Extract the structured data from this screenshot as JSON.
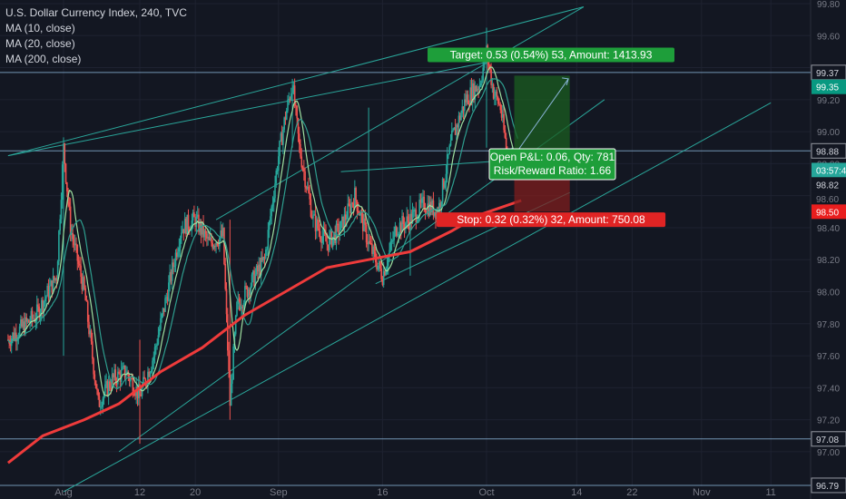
{
  "legend": {
    "title": "U.S. Dollar Currency Index, 240, TVC",
    "ma1": "MA (10, close)",
    "ma2": "MA (20, close)",
    "ma3": "MA (200, close)"
  },
  "chart_data": {
    "type": "candlestick",
    "ylim": [
      96.75,
      99.8
    ],
    "y_ticks": [
      "99.80",
      "99.60",
      "99.40",
      "99.20",
      "99.00",
      "98.80",
      "98.60",
      "98.40",
      "98.20",
      "98.00",
      "97.80",
      "97.60",
      "97.40",
      "97.20",
      "97.00"
    ],
    "x_ticks": [
      {
        "label": "Aug",
        "day": 0
      },
      {
        "label": "12",
        "day": 11
      },
      {
        "label": "20",
        "day": 19
      },
      {
        "label": "Sep",
        "day": 31
      },
      {
        "label": "16",
        "day": 46
      },
      {
        "label": "Oct",
        "day": 61
      },
      {
        "label": "14",
        "day": 74
      },
      {
        "label": "22",
        "day": 82
      },
      {
        "label": "Nov",
        "day": 92
      },
      {
        "label": "11",
        "day": 102
      }
    ],
    "x_range_days": [
      -8,
      108
    ],
    "price_tags": [
      {
        "label": "99.37",
        "value": 99.37,
        "color": "#131722",
        "text": "#d1d4dc",
        "border": "#9598a1"
      },
      {
        "label": "99.35",
        "value": 99.28,
        "color": "#089981",
        "text": "#ffffff"
      },
      {
        "label": "98.88",
        "value": 98.88,
        "color": "#131722",
        "text": "#d1d4dc",
        "border": "#9598a1"
      },
      {
        "label": "03:57:41",
        "value": 98.76,
        "color": "#26a69a",
        "text": "#ffffff"
      },
      {
        "label": "98.82",
        "value": 98.67,
        "color": "#131722",
        "text": "#d1d4dc"
      },
      {
        "label": "98.60",
        "value": 98.58,
        "color": "#131722",
        "text": "#787b86"
      },
      {
        "label": "98.50",
        "value": 98.5,
        "color": "#e91e1e",
        "text": "#ffffff"
      },
      {
        "label": "97.08",
        "value": 97.08,
        "color": "#131722",
        "text": "#d1d4dc",
        "border": "#9598a1"
      },
      {
        "label": "96.79",
        "value": 96.79,
        "color": "#131722",
        "text": "#d1d4dc",
        "border": "#9598a1"
      }
    ],
    "horizontal_lines": [
      99.37,
      98.88,
      97.08,
      96.79
    ],
    "ohlc_key_points": [
      {
        "day": -8,
        "close": 97.7
      },
      {
        "day": -4,
        "close": 97.85
      },
      {
        "day": -1,
        "close": 98.1
      },
      {
        "day": 0,
        "close": 98.9
      },
      {
        "day": 1,
        "close": 98.4
      },
      {
        "day": 3,
        "close": 98.0
      },
      {
        "day": 5,
        "close": 97.3
      },
      {
        "day": 7,
        "close": 97.45
      },
      {
        "day": 9,
        "close": 97.5
      },
      {
        "day": 11,
        "close": 97.35
      },
      {
        "day": 13,
        "close": 97.6
      },
      {
        "day": 15,
        "close": 98.0
      },
      {
        "day": 17,
        "close": 98.4
      },
      {
        "day": 19,
        "close": 98.45
      },
      {
        "day": 21,
        "close": 98.3
      },
      {
        "day": 23,
        "close": 98.35
      },
      {
        "day": 24,
        "close": 97.3
      },
      {
        "day": 25,
        "close": 97.9
      },
      {
        "day": 27,
        "close": 98.05
      },
      {
        "day": 29,
        "close": 98.2
      },
      {
        "day": 31,
        "close": 98.85
      },
      {
        "day": 32,
        "close": 99.1
      },
      {
        "day": 33,
        "close": 99.3
      },
      {
        "day": 34,
        "close": 98.9
      },
      {
        "day": 36,
        "close": 98.45
      },
      {
        "day": 38,
        "close": 98.3
      },
      {
        "day": 40,
        "close": 98.4
      },
      {
        "day": 42,
        "close": 98.6
      },
      {
        "day": 44,
        "close": 98.3
      },
      {
        "day": 46,
        "close": 98.1
      },
      {
        "day": 48,
        "close": 98.4
      },
      {
        "day": 50,
        "close": 98.45
      },
      {
        "day": 52,
        "close": 98.55
      },
      {
        "day": 54,
        "close": 98.5
      },
      {
        "day": 56,
        "close": 98.95
      },
      {
        "day": 58,
        "close": 99.2
      },
      {
        "day": 60,
        "close": 99.3
      },
      {
        "day": 61,
        "close": 99.5
      },
      {
        "day": 62,
        "close": 99.25
      },
      {
        "day": 63,
        "close": 99.15
      },
      {
        "day": 64,
        "close": 98.85
      },
      {
        "day": 65,
        "close": 98.82
      }
    ],
    "position": {
      "entry": 98.82,
      "target_price": 99.35,
      "stop_price": 98.5,
      "start_day": 65,
      "end_day": 73,
      "target_label": "Target: 0.53 (0.54%) 53, Amount: 1413.93",
      "open_label": "Open P&L: 0.06, Qty: 781",
      "rr_label": "Risk/Reward Ratio: 1.66",
      "stop_label": "Stop: 0.32 (0.32%) 32, Amount: 750.08"
    },
    "colors": {
      "up": "#26a69a",
      "down": "#ef5350",
      "ma200": "#ef3b3b",
      "ma_fast": "#9fe0a0",
      "ma_mid": "#2e9e8f",
      "channel": "#2aa69a"
    }
  }
}
